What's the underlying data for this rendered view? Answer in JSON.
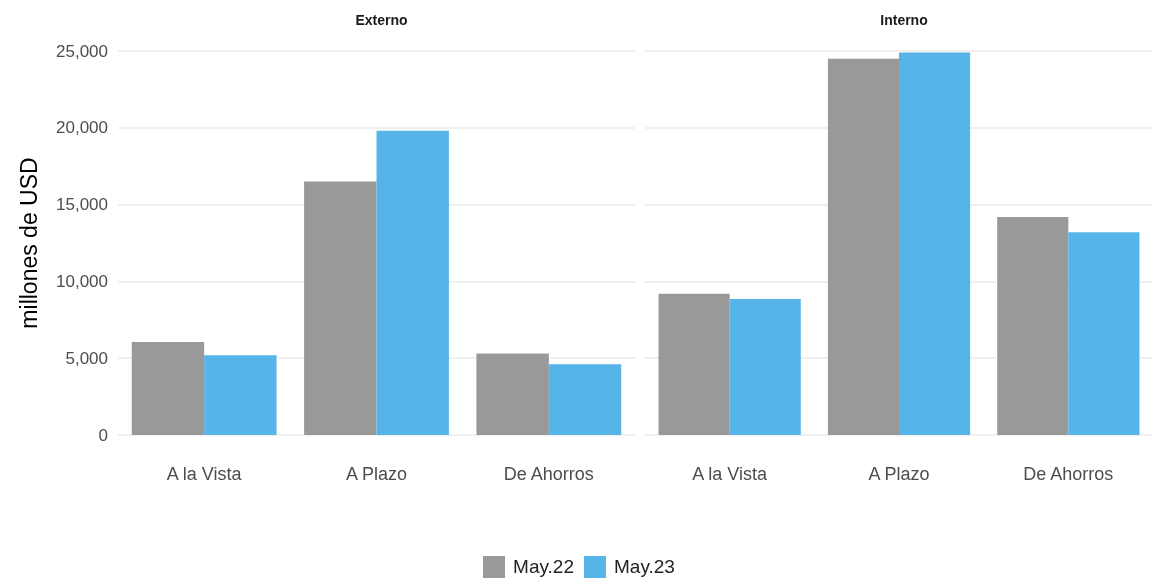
{
  "chart_data": [
    {
      "type": "bar",
      "title": "Externo",
      "ylabel": "millones de USD",
      "categories": [
        "A la Vista",
        "A Plazo",
        "De Ahorros"
      ],
      "series": [
        {
          "name": "May.22",
          "color": "#999999",
          "values": [
            6050,
            16500,
            5300
          ]
        },
        {
          "name": "May.23",
          "color": "#56b4e9",
          "values": [
            5200,
            19800,
            4600
          ]
        }
      ],
      "ylim": [
        0,
        25000
      ],
      "yticks": [
        0,
        {
          "value": 5000,
          "label": "5,000"
        },
        {
          "value": 10000,
          "label": "10,000"
        },
        {
          "value": 15000,
          "label": "15,000"
        },
        {
          "value": 20000,
          "label": "20,000"
        },
        {
          "value": 25000,
          "label": "25,000"
        }
      ],
      "grid": "y",
      "legend": "bottom"
    },
    {
      "type": "bar",
      "title": "Interno",
      "categories": [
        "A la Vista",
        "A Plazo",
        "De Ahorros"
      ],
      "series": [
        {
          "color": "#999999",
          "values": [
            9200,
            24500,
            14200
          ]
        },
        {
          "color": "#56b4e9",
          "values": [
            8850,
            24900,
            13200
          ]
        }
      ],
      "ylim": [
        0,
        25000
      ],
      "yticks": [
        0,
        5000,
        10000,
        15000,
        20000,
        25000
      ],
      "grid": "y",
      "tick_labels": "x"
    }
  ]
}
